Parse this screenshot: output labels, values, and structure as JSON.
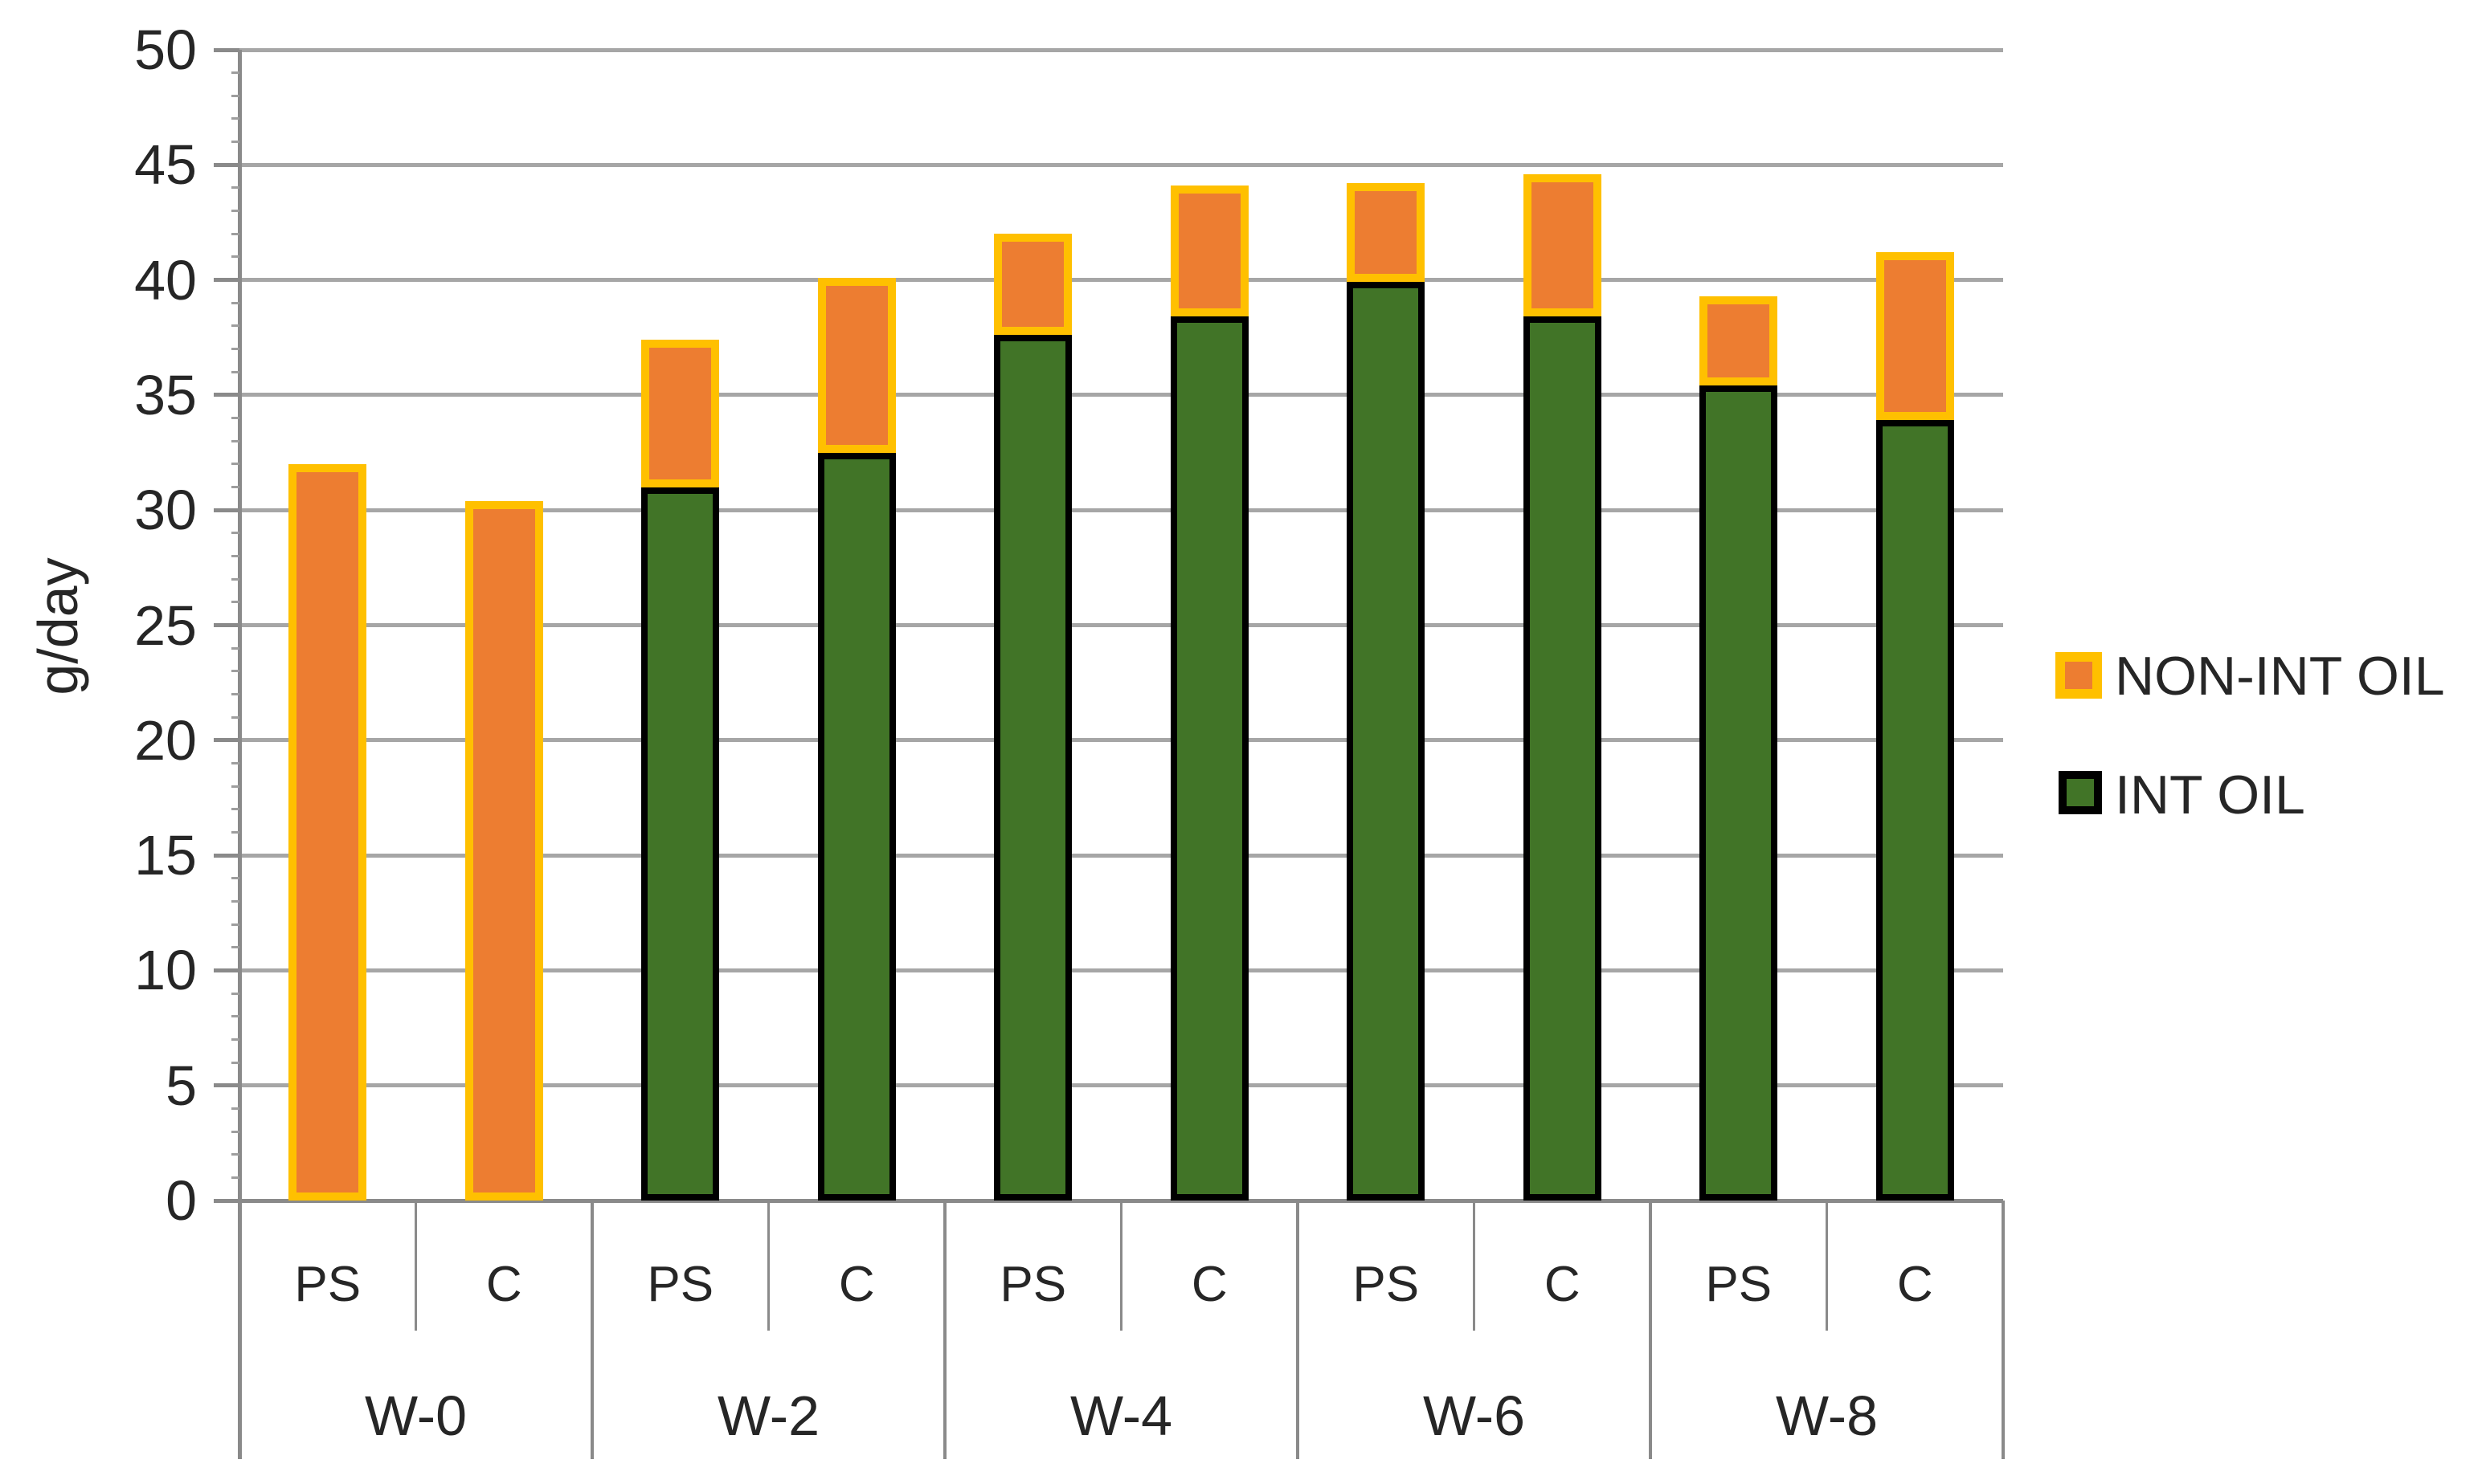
{
  "chart_data": {
    "type": "bar",
    "stacked": true,
    "title": "",
    "ylabel": "g/day",
    "ylim": [
      0,
      50
    ],
    "ytick_interval": 5,
    "yticks": [
      0,
      5,
      10,
      15,
      20,
      25,
      30,
      35,
      40,
      45,
      50
    ],
    "grid": true,
    "legend_position": "right",
    "group_labels": [
      "W-0",
      "W-2",
      "W-4",
      "W-6",
      "W-8"
    ],
    "bar_labels": [
      "PS",
      "C"
    ],
    "categories": [
      "W-0 PS",
      "W-0 C",
      "W-2 PS",
      "W-2 C",
      "W-4 PS",
      "W-4 C",
      "W-6 PS",
      "W-6 C",
      "W-8 PS",
      "W-8 C"
    ],
    "series": [
      {
        "name": "INT OIL",
        "fill": "#417427",
        "border": "#000000",
        "values": [
          0,
          0,
          31.0,
          32.5,
          37.6,
          38.4,
          39.9,
          38.4,
          35.4,
          33.9
        ]
      },
      {
        "name": "NON-INT OIL",
        "fill": "#ED7D31",
        "border": "#FFC000",
        "values": [
          32.0,
          30.4,
          6.4,
          7.6,
          4.4,
          5.7,
          4.3,
          6.2,
          3.9,
          7.3
        ]
      }
    ],
    "totals": [
      32.0,
      30.4,
      37.4,
      40.1,
      42.0,
      44.1,
      44.2,
      44.6,
      39.3,
      41.2
    ]
  },
  "legend": [
    {
      "label": "NON-INT OIL",
      "fill": "#ED7D31",
      "border": "#FFC000"
    },
    {
      "label": "INT OIL",
      "fill": "#417427",
      "border": "#000000"
    }
  ],
  "colors": {
    "gridline": "#a6a6a6",
    "axis": "#8a8a8a",
    "text": "#262626",
    "background": "#ffffff"
  }
}
